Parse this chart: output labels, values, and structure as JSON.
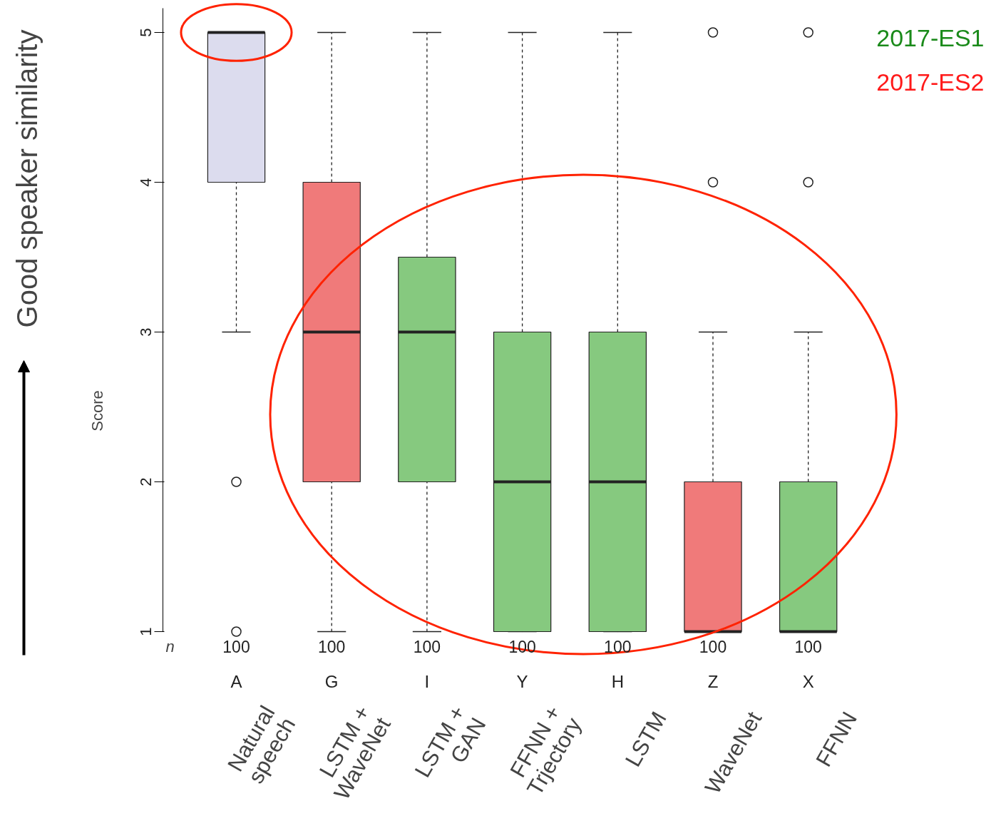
{
  "chart_data": {
    "type": "box",
    "ylabel": "Score",
    "categories": [
      "A",
      "G",
      "I",
      "Y",
      "H",
      "Z",
      "X"
    ],
    "boxes": [
      {
        "low": 3,
        "q1": 4,
        "median": 5,
        "q3": 5,
        "high": 5,
        "outliers": [
          2,
          1
        ]
      },
      {
        "low": 1,
        "q1": 2,
        "median": 3,
        "q3": 4,
        "high": 5
      },
      {
        "low": 1,
        "q1": 2,
        "median": 3,
        "q3": 3.5,
        "high": 5
      },
      {
        "low": 1,
        "q1": 1,
        "median": 2,
        "q3": 3,
        "high": 5
      },
      {
        "low": 1,
        "q1": 1,
        "median": 2,
        "q3": 3,
        "high": 5
      },
      {
        "low": 1,
        "q1": 1,
        "median": 1,
        "q3": 2,
        "high": 3,
        "outliers": [
          4,
          5
        ]
      },
      {
        "low": 1,
        "q1": 1,
        "median": 1,
        "q3": 2,
        "high": 3,
        "outliers": [
          4,
          5
        ]
      }
    ],
    "colors": [
      "#dcdcee",
      "#f07a7a",
      "#86c97f",
      "#86c97f",
      "#86c97f",
      "#f07a7a",
      "#86c97f"
    ],
    "ylim": [
      1,
      5.16
    ],
    "yticks": [
      1,
      2,
      3,
      4,
      5
    ],
    "annotations": [
      "Good speaker similarity",
      "n",
      "2017-ES1",
      "2017-ES2",
      "100",
      "100",
      "100",
      "100",
      "100",
      "100",
      "100",
      "Natural speech",
      "LSTM + WaveNet",
      "LSTM + GAN",
      "FFNN + Trjectory",
      "LSTM",
      "WaveNet",
      "FFNN"
    ]
  }
}
